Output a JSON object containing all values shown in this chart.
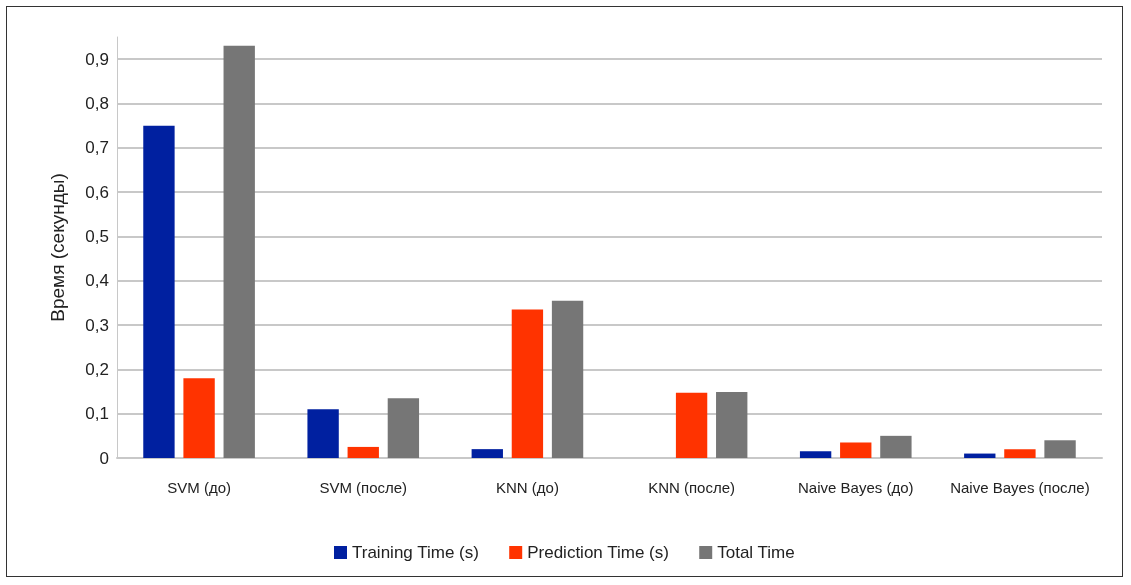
{
  "chart_data": {
    "type": "bar",
    "ylabel": "Время (секунды)",
    "categories": [
      "SVM (до)",
      "SVM (после)",
      "KNN (до)",
      "KNN (после)",
      "Naive Bayes (до)",
      "Naive Bayes (после)"
    ],
    "series": [
      {
        "name": "Training Time (s)",
        "color": "#0020a0",
        "values": [
          0.75,
          0.11,
          0.02,
          0,
          0.015,
          0.01
        ]
      },
      {
        "name": "Prediction Time (s)",
        "color": "#ff3300",
        "values": [
          0.18,
          0.025,
          0.335,
          0.147,
          0.035,
          0.02
        ]
      },
      {
        "name": "Total Time",
        "color": "#767676",
        "values": [
          0.93,
          0.135,
          0.355,
          0.149,
          0.05,
          0.04
        ]
      }
    ],
    "ylim": [
      0,
      0.95
    ],
    "yticks": [
      0,
      {
        "value": 0.1,
        "label": "0,1"
      },
      {
        "value": 0.2,
        "label": "0,2"
      },
      {
        "value": 0.3,
        "label": "0,3"
      },
      {
        "value": 0.4,
        "label": "0,4"
      },
      {
        "value": 0.5,
        "label": "0,5"
      },
      {
        "value": 0.6,
        "label": "0,6"
      },
      {
        "value": 0.7,
        "label": "0,7"
      },
      {
        "value": 0.8,
        "label": "0,8"
      },
      {
        "value": 0.9,
        "label": "0,9"
      }
    ],
    "grid": "y",
    "legend": "bottom"
  }
}
